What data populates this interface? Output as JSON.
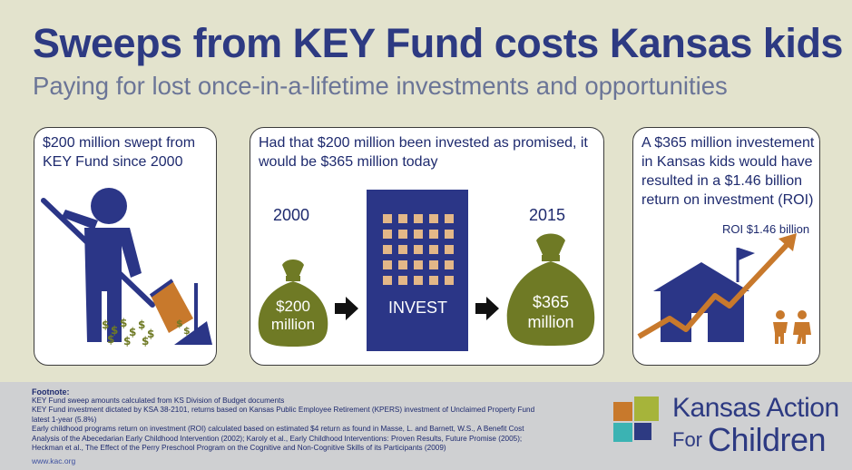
{
  "header": {
    "title": "Sweeps from KEY Fund costs Kansas kids",
    "subtitle": "Paying for lost once-in-a-lifetime investments and opportunities"
  },
  "panel1": {
    "text": "$200 million swept from KEY Fund since 2000"
  },
  "panel2": {
    "text": "Had that $200 million been invested as promised, it would be $365 million today",
    "year_start": "2000",
    "year_end": "2015",
    "bag_left_line1": "$200",
    "bag_left_line2": "million",
    "invest_label": "INVEST",
    "bag_right_line1": "$365",
    "bag_right_line2": "million"
  },
  "panel3": {
    "text": "A $365 million investement in Kansas kids would have resulted in a $1.46 billion return on investment (ROI)",
    "roi_label": "ROI $1.46 billion"
  },
  "footer": {
    "title": "Footnote:",
    "lines": [
      "KEY Fund sweep amounts calculated from KS Division of Budget documents",
      "KEY Fund investment dictated by KSA 38-2101, returns based on Kansas Public Employee Retirement (KPERS) investment of Unclaimed Property Fund latest 1-year (5.8%)",
      "Early childhood programs return on investment (ROI) calculated based on estimated $4 return as found in Masse, L. and Barnett, W.S., A Benefit Cost Analysis of the Abecedarian Early Childhood Intervention (2002); Karoly et al., Early Childhood Interventions: Proven Results, Future Promise (2005); Heckman et al., The Effect of the Perry Preschool Program on the Cognitive and Non-Cognitive Skills of its Participants (2009)"
    ],
    "url": "www.kac.org"
  },
  "logo": {
    "line1": "Kansas Action",
    "line2_small": "For",
    "line2_big": "Children"
  },
  "colors": {
    "title_blue": "#2d3a82",
    "subtitle_gray": "#6b7597",
    "background": "#e3e3cd",
    "bag_green": "#6f7a25",
    "broom_orange": "#c8792c",
    "building_blue": "#2b3687",
    "window_tan": "#e3b788",
    "arrow_orange": "#c8792c",
    "logo_orange": "#c8792c",
    "logo_green": "#a6b43a",
    "logo_teal": "#3bb3b3",
    "logo_navy": "#2d3a82"
  },
  "icons": [
    "sweeping-person-icon",
    "dollar-signs-icon",
    "dustpan-icon",
    "money-bag-icon",
    "arrow-right-icon",
    "office-building-icon",
    "school-house-icon",
    "flag-icon",
    "growth-arrow-icon",
    "children-icon",
    "logo-squares-icon"
  ]
}
